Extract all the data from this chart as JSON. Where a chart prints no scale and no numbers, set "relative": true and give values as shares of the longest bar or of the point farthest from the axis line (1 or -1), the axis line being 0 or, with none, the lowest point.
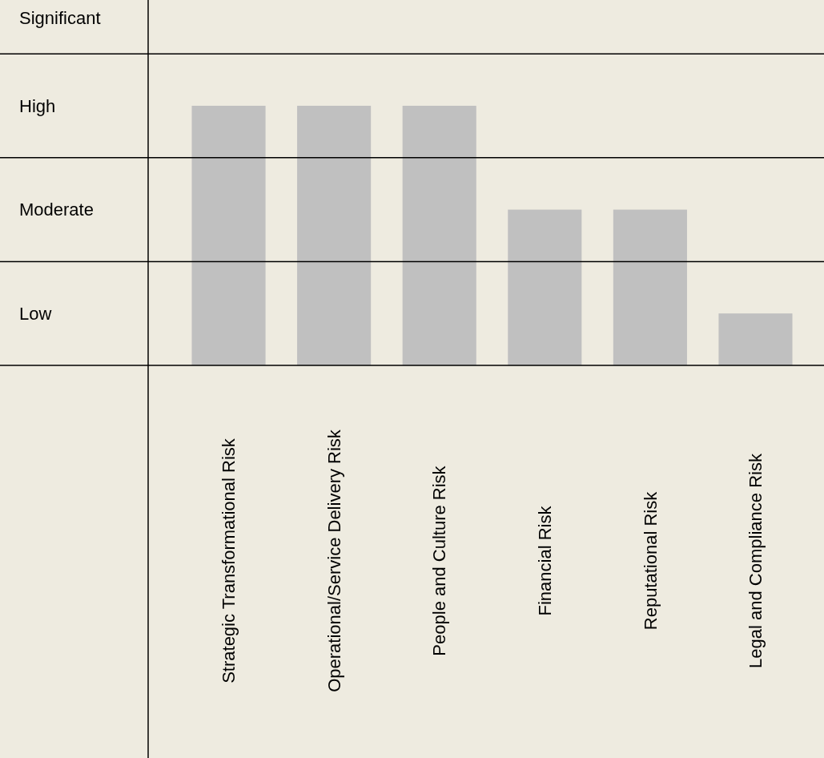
{
  "chart_data": {
    "type": "bar",
    "categories": [
      "Strategic Transformational Risk",
      "Operational/Service Delivery Risk",
      "People and Culture Risk",
      "Financial Risk",
      "Reputational Risk",
      "Legal and Compliance Risk"
    ],
    "values": [
      1,
      1,
      1,
      0.6,
      0.6,
      0.2
    ],
    "color": "#c0c0c0",
    "relative": true,
    "ref_lines": [
      {
        "axis": "y",
        "value": 0.4,
        "color": "#000000"
      },
      {
        "axis": "y",
        "value": 0.8,
        "color": "#000000"
      },
      {
        "axis": "y",
        "value": 1.2,
        "color": "#000000"
      }
    ],
    "annotations": [
      "Low",
      "Moderate",
      "High",
      "Significant"
    ]
  }
}
